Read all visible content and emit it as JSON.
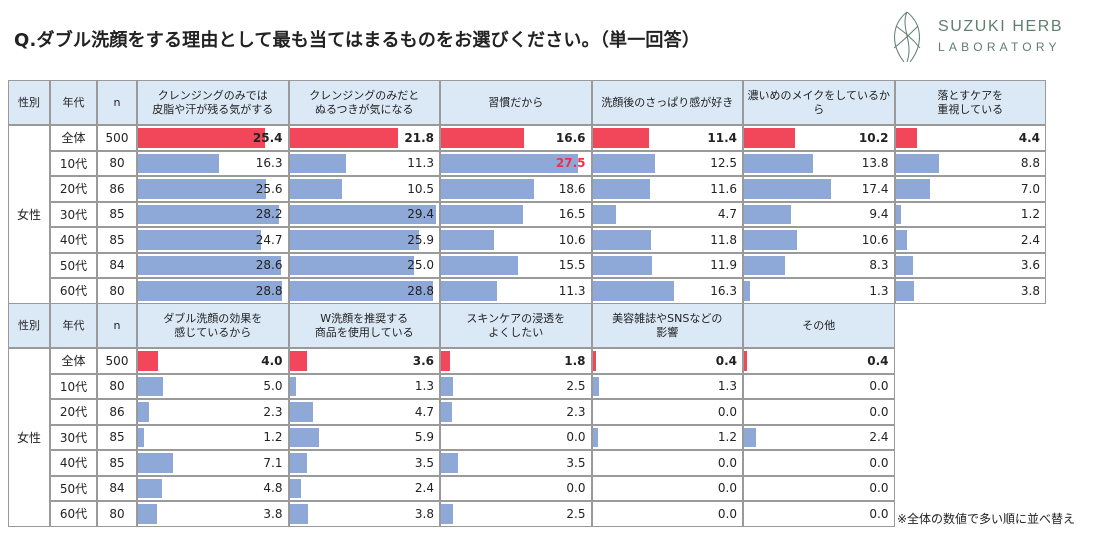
{
  "title": "Q.ダブル洗顔をする理由として最も当てはまるものをお選びください。（単一回答）",
  "logo": {
    "line1": "SUZUKI HERB",
    "line2": "LABORATORY"
  },
  "note": "※全体の数値で多い順に並べ替え",
  "colors": {
    "header_bg": "#dbe8f5",
    "total_bar": "#f2465a",
    "row_bar": "#8ea8d8",
    "highlight_text": "#e8334a",
    "logo": "#5f7f70"
  },
  "column_labels": {
    "gender": "性別",
    "age": "年代",
    "n": "n"
  },
  "gender_label": "女性",
  "rows": [
    {
      "age": "全体",
      "n": "500"
    },
    {
      "age": "10代",
      "n": "80"
    },
    {
      "age": "20代",
      "n": "86"
    },
    {
      "age": "30代",
      "n": "85"
    },
    {
      "age": "40代",
      "n": "85"
    },
    {
      "age": "50代",
      "n": "84"
    },
    {
      "age": "60代",
      "n": "80"
    }
  ],
  "chart_data": [
    {
      "type": "table",
      "title": "Q.ダブル洗顔をする理由として最も当てはまるものをお選びください。（単一回答）",
      "unit": "%",
      "bar_max": 30,
      "categories": [
        "全体",
        "10代",
        "20代",
        "30代",
        "40代",
        "50代",
        "60代"
      ],
      "series": [
        {
          "name": "クレンジングのみでは\n皮脂や汗が残る気がする",
          "values": [
            25.4,
            16.3,
            25.6,
            28.2,
            24.7,
            28.6,
            28.8
          ]
        },
        {
          "name": "クレンジングのみだと\nぬるつきが気になる",
          "values": [
            21.8,
            11.3,
            10.5,
            29.4,
            25.9,
            25.0,
            28.8
          ]
        },
        {
          "name": "習慣だから",
          "values": [
            16.6,
            27.5,
            18.6,
            16.5,
            10.6,
            15.5,
            11.3
          ],
          "highlight_index": 1
        },
        {
          "name": "洗顔後のさっぱり感が好き",
          "values": [
            11.4,
            12.5,
            11.6,
            4.7,
            11.8,
            11.9,
            16.3
          ]
        },
        {
          "name": "濃いめのメイクをしているから",
          "values": [
            10.2,
            13.8,
            17.4,
            9.4,
            10.6,
            8.3,
            1.3
          ]
        },
        {
          "name": "落とすケアを\n重視している",
          "values": [
            4.4,
            8.8,
            7.0,
            1.2,
            2.4,
            3.6,
            3.8
          ]
        }
      ]
    },
    {
      "type": "table",
      "unit": "%",
      "bar_max": 30,
      "categories": [
        "全体",
        "10代",
        "20代",
        "30代",
        "40代",
        "50代",
        "60代"
      ],
      "series": [
        {
          "name": "ダブル洗顔の効果を\n感じているから",
          "values": [
            4.0,
            5.0,
            2.3,
            1.2,
            7.1,
            4.8,
            3.8
          ]
        },
        {
          "name": "W洗顔を推奨する\n商品を使用している",
          "values": [
            3.6,
            1.3,
            4.7,
            5.9,
            3.5,
            2.4,
            3.8
          ]
        },
        {
          "name": "スキンケアの浸透を\nよくしたい",
          "values": [
            1.8,
            2.5,
            2.3,
            0.0,
            3.5,
            0.0,
            2.5
          ]
        },
        {
          "name": "美容雑誌やSNSなどの\n影響",
          "values": [
            0.4,
            1.3,
            0.0,
            1.2,
            0.0,
            0.0,
            0.0
          ]
        },
        {
          "name": "その他",
          "values": [
            0.4,
            0.0,
            0.0,
            2.4,
            0.0,
            0.0,
            0.0
          ]
        }
      ]
    }
  ]
}
